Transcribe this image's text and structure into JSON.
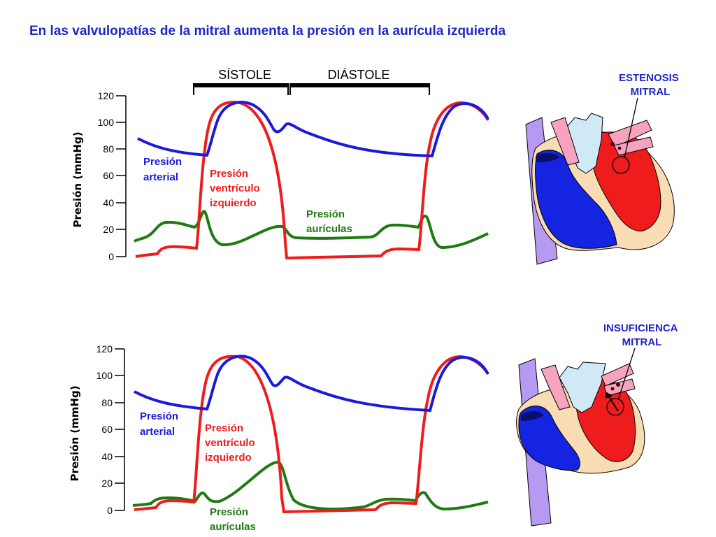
{
  "title": "En las valvulopatías de la mitral aumenta la presión en la aurícula izquierda",
  "phases": {
    "systole": "SÍSTOLE",
    "diastole": "DIÁSTOLE"
  },
  "colors": {
    "arterial": "#1a1adb",
    "ventricle": "#ee1c1c",
    "atria": "#1f7a12",
    "title": "#1f26c9"
  },
  "charts": [
    {
      "y_axis_label": "Presión (mmHg)",
      "y_ticks": [
        "120",
        "100",
        "80",
        "60",
        "40",
        "20",
        "0"
      ],
      "labels": {
        "arterial": [
          "Presión",
          "arterial"
        ],
        "ventricle": [
          "Presión",
          "ventrículo",
          "izquierdo"
        ],
        "atria": [
          "Presión",
          "aurículas"
        ]
      }
    },
    {
      "y_axis_label": "Presión (mmHg)",
      "y_ticks": [
        "120",
        "100",
        "80",
        "60",
        "40",
        "20",
        "0"
      ],
      "labels": {
        "arterial": [
          "Presión",
          "arterial"
        ],
        "ventricle": [
          "Presión",
          "ventrículo",
          "izquierdo"
        ],
        "atria": [
          "Presión",
          "aurículas"
        ]
      }
    }
  ],
  "hearts": [
    {
      "label": [
        "ESTENOSIS",
        "MITRAL"
      ],
      "icon": "heart-stenosis-icon"
    },
    {
      "label": [
        "INSUFICIENCA",
        "MITRAL"
      ],
      "icon": "heart-regurgitation-icon"
    }
  ]
}
